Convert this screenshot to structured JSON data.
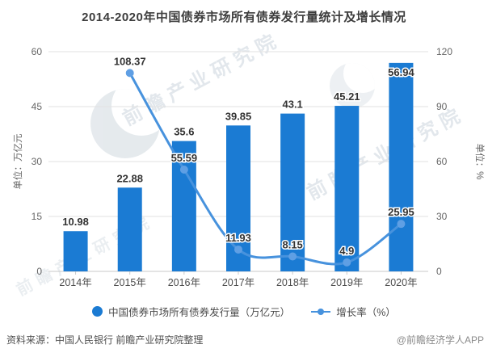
{
  "title": "2014-2020年中国债券市场所有债券发行量统计及增长情况",
  "chart_data": {
    "type": "combo",
    "categories": [
      "2014年",
      "2015年",
      "2016年",
      "2017年",
      "2018年",
      "2019年",
      "2020年"
    ],
    "series": [
      {
        "name": "中国债券市场所有债券发行量（万亿元）",
        "type": "bar",
        "axis": "left",
        "values": [
          10.98,
          22.88,
          35.6,
          39.85,
          43.1,
          45.21,
          56.94
        ]
      },
      {
        "name": "增长率（%）",
        "type": "line",
        "axis": "right",
        "values": [
          null,
          108.37,
          55.59,
          11.93,
          8.15,
          4.9,
          25.95
        ]
      }
    ],
    "left_axis": {
      "title": "单位：万亿元",
      "min": 0,
      "max": 60,
      "ticks": [
        0,
        15,
        30,
        45,
        60
      ]
    },
    "right_axis": {
      "title": "单位：%",
      "min": 0,
      "max": 120,
      "ticks": [
        0,
        30,
        60,
        90,
        120
      ]
    },
    "grid": true,
    "legend_position": "bottom"
  },
  "footer": {
    "source": "资料来源：中国人民银行 前瞻产业研究院整理",
    "credit": "@前瞻经济学人APP"
  },
  "watermark": {
    "text": "前瞻产业研究院"
  },
  "colors": {
    "bar": "#1b7bd3",
    "line": "#4792dd",
    "point": "#5f9fe4",
    "grid": "#e2e2e2",
    "axis": "#c9c9c9",
    "tick_text": "#666666",
    "xtick_text": "#4d4d4d",
    "label_text": "#333333",
    "title_text": "#3d3d3d",
    "legend_text": "#4a4a4a",
    "source_text": "#4f4f4f",
    "credit_text": "#8a8a8a"
  }
}
